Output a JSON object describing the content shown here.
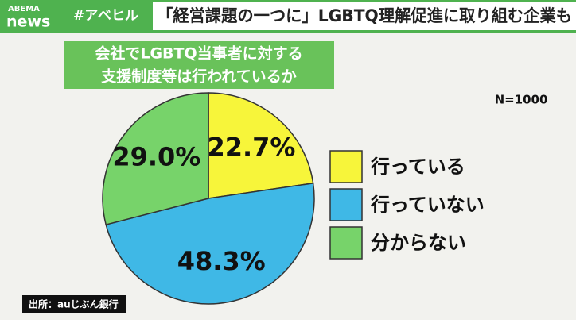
{
  "header": {
    "logo_top": "ABEMA",
    "logo_bottom": "news",
    "tag": "#アベヒル",
    "headline": "「経営課題の一つに」LGBTQ理解促進に取り組む企業も"
  },
  "chart_data": {
    "type": "pie",
    "title": [
      "会社でLGBTQ当事者に対する",
      "支援制度等は行われているか"
    ],
    "note": "N=1000",
    "categories": [
      "行っている",
      "行っていない",
      "分からない"
    ],
    "values": [
      22.7,
      48.3,
      29.0
    ],
    "value_labels": [
      "22.7%",
      "48.3%",
      "29.0%"
    ],
    "colors": [
      "#f7f53a",
      "#3fb8e6",
      "#77d36a"
    ],
    "source": "出所：auじぶん銀行"
  }
}
